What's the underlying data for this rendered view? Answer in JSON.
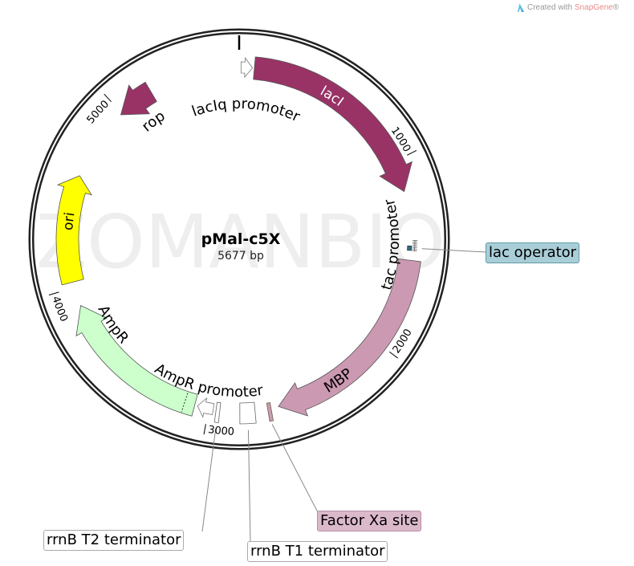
{
  "logo": {
    "prefix": "Created with ",
    "brand": "SnapGene",
    "suffix": "®"
  },
  "watermark": "ZOMANBIO",
  "map": {
    "name": "pMal-c5X",
    "size_label": "5677 bp",
    "length_bp": 5677,
    "ticks": [
      1000,
      2000,
      3000,
      4000,
      5000
    ],
    "tick_labels": [
      "1000",
      "2000",
      "3000",
      "4000",
      "5000"
    ]
  },
  "features": [
    {
      "name": "lacIq promoter",
      "type": "promoter",
      "start": 10,
      "end": 70,
      "strand": 1,
      "color": "#ffffff"
    },
    {
      "name": "lacI",
      "type": "cds",
      "start": 80,
      "end": 1165,
      "strand": 1,
      "color": "#993366"
    },
    {
      "name": "lac operator",
      "type": "protein_bind",
      "start": 1455,
      "end": 1478,
      "strand": 0,
      "color": "#336f80"
    },
    {
      "name": "tac promoter",
      "type": "promoter",
      "start": 1425,
      "end": 1455,
      "strand": 1,
      "color": "#ffffff"
    },
    {
      "name": "MBP",
      "type": "cds",
      "start": 1530,
      "end": 2630,
      "strand": 1,
      "color": "#cc99b2"
    },
    {
      "name": "Factor Xa site",
      "type": "site",
      "start": 2670,
      "end": 2688,
      "strand": 0,
      "color": "#cc99b2"
    },
    {
      "name": "rrnB T1 terminator",
      "type": "terminator",
      "start": 2755,
      "end": 2835,
      "strand": 0,
      "color": "#ffffff"
    },
    {
      "name": "rrnB T2 terminator",
      "type": "terminator",
      "start": 2940,
      "end": 2960,
      "strand": 0,
      "color": "#ffffff"
    },
    {
      "name": "AmpR promoter",
      "type": "promoter",
      "start": 2975,
      "end": 3060,
      "strand": 1,
      "color": "#ffffff"
    },
    {
      "name": "AmpR",
      "type": "cds",
      "start": 3075,
      "end": 3900,
      "strand": 1,
      "color": "#ccffcc"
    },
    {
      "name": "ori",
      "type": "rep_origin",
      "start": 4030,
      "end": 4600,
      "strand": 1,
      "color": "#ffff00"
    },
    {
      "name": "rop",
      "type": "cds",
      "start": 4990,
      "end": 5190,
      "strand": -1,
      "color": "#993366"
    }
  ],
  "callouts": {
    "lac_operator": {
      "label": "lac operator",
      "color": "#a9ced8"
    },
    "factor_xa": {
      "label": "Factor Xa site",
      "color": "#dbb9cb"
    },
    "rrnb_t2": {
      "label": "rrnB T2 terminator",
      "color": "#ffffff"
    },
    "rrnb_t1": {
      "label": "rrnB T1 terminator",
      "color": "#ffffff"
    }
  }
}
